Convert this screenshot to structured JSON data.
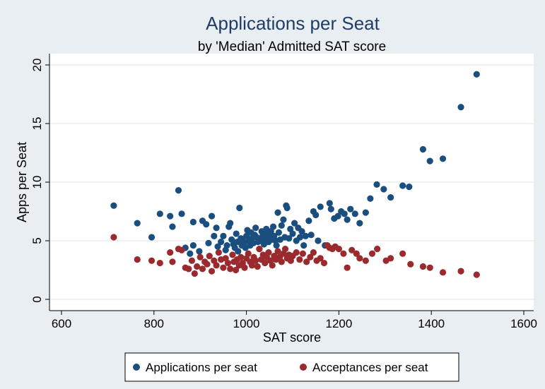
{
  "chart_data": {
    "type": "scatter",
    "title": "Applications per Seat",
    "subtitle": "by 'Median' Admitted SAT score",
    "xlabel": "SAT score",
    "ylabel": "Apps per Seat",
    "xlim": [
      600,
      1600
    ],
    "ylim": [
      0,
      20
    ],
    "xticks": [
      "600",
      "800",
      "1000",
      "1200",
      "1400",
      "1600"
    ],
    "yticks": [
      "0",
      "5",
      "10",
      "15",
      "20"
    ],
    "grid": true,
    "legend_placement": "bottom",
    "series": [
      {
        "name": "Applications per seat",
        "color": "#1a4e7f",
        "points": [
          [
            713,
            8.0
          ],
          [
            764,
            6.5
          ],
          [
            795,
            5.3
          ],
          [
            813,
            7.3
          ],
          [
            835,
            7.1
          ],
          [
            840,
            6.2
          ],
          [
            853,
            9.3
          ],
          [
            860,
            7.3
          ],
          [
            868,
            4.4
          ],
          [
            878,
            3.9
          ],
          [
            885,
            4.6
          ],
          [
            885,
            6.6
          ],
          [
            898,
            4.1
          ],
          [
            905,
            6.7
          ],
          [
            913,
            6.4
          ],
          [
            918,
            4.8
          ],
          [
            925,
            7.1
          ],
          [
            930,
            5.4
          ],
          [
            935,
            6.1
          ],
          [
            938,
            4.5
          ],
          [
            945,
            4.9
          ],
          [
            950,
            5.4
          ],
          [
            955,
            4.2
          ],
          [
            958,
            4.6
          ],
          [
            962,
            6.2
          ],
          [
            965,
            6.5
          ],
          [
            968,
            5.1
          ],
          [
            972,
            4.7
          ],
          [
            975,
            4.4
          ],
          [
            978,
            5.6
          ],
          [
            980,
            4.9
          ],
          [
            982,
            4.1
          ],
          [
            985,
            7.8
          ],
          [
            988,
            5.2
          ],
          [
            990,
            4.6
          ],
          [
            992,
            5.0
          ],
          [
            995,
            4.8
          ],
          [
            998,
            4.4
          ],
          [
            1000,
            5.4
          ],
          [
            1002,
            5.9
          ],
          [
            1005,
            5.0
          ],
          [
            1008,
            4.6
          ],
          [
            1010,
            5.7
          ],
          [
            1012,
            5.2
          ],
          [
            1015,
            4.8
          ],
          [
            1018,
            5.5
          ],
          [
            1020,
            6.1
          ],
          [
            1022,
            5.3
          ],
          [
            1025,
            4.9
          ],
          [
            1028,
            4.3
          ],
          [
            1030,
            5.0
          ],
          [
            1033,
            5.8
          ],
          [
            1035,
            5.4
          ],
          [
            1038,
            4.7
          ],
          [
            1040,
            5.2
          ],
          [
            1043,
            6.0
          ],
          [
            1045,
            5.6
          ],
          [
            1048,
            4.9
          ],
          [
            1050,
            5.4
          ],
          [
            1053,
            5.8
          ],
          [
            1055,
            5.1
          ],
          [
            1058,
            6.2
          ],
          [
            1060,
            5.4
          ],
          [
            1063,
            5.0
          ],
          [
            1065,
            4.6
          ],
          [
            1068,
            7.4
          ],
          [
            1070,
            5.7
          ],
          [
            1073,
            5.1
          ],
          [
            1076,
            6.3
          ],
          [
            1080,
            6.8
          ],
          [
            1083,
            5.3
          ],
          [
            1086,
            8.0
          ],
          [
            1088,
            7.8
          ],
          [
            1092,
            5.2
          ],
          [
            1095,
            6.0
          ],
          [
            1100,
            5.6
          ],
          [
            1104,
            6.5
          ],
          [
            1108,
            5.0
          ],
          [
            1112,
            6.1
          ],
          [
            1116,
            5.3
          ],
          [
            1120,
            5.8
          ],
          [
            1124,
            4.6
          ],
          [
            1128,
            5.4
          ],
          [
            1135,
            6.7
          ],
          [
            1140,
            5.5
          ],
          [
            1145,
            7.5
          ],
          [
            1150,
            7.2
          ],
          [
            1155,
            5.0
          ],
          [
            1160,
            7.9
          ],
          [
            1170,
            4.6
          ],
          [
            1180,
            8.2
          ],
          [
            1183,
            7.7
          ],
          [
            1190,
            6.9
          ],
          [
            1198,
            7.1
          ],
          [
            1205,
            7.5
          ],
          [
            1212,
            7.3
          ],
          [
            1218,
            6.8
          ],
          [
            1225,
            7.7
          ],
          [
            1235,
            7.3
          ],
          [
            1245,
            6.5
          ],
          [
            1258,
            7.4
          ],
          [
            1268,
            8.6
          ],
          [
            1282,
            9.8
          ],
          [
            1297,
            9.4
          ],
          [
            1312,
            8.7
          ],
          [
            1338,
            9.7
          ],
          [
            1352,
            9.6
          ],
          [
            1382,
            12.8
          ],
          [
            1397,
            11.8
          ],
          [
            1425,
            12.0
          ],
          [
            1464,
            16.4
          ],
          [
            1498,
            19.2
          ]
        ]
      },
      {
        "name": "Acceptances per seat",
        "color": "#9b2a2e",
        "points": [
          [
            713,
            5.3
          ],
          [
            764,
            3.4
          ],
          [
            795,
            3.3
          ],
          [
            813,
            3.1
          ],
          [
            835,
            4.0
          ],
          [
            840,
            3.2
          ],
          [
            853,
            4.3
          ],
          [
            860,
            4.2
          ],
          [
            868,
            2.7
          ],
          [
            875,
            2.6
          ],
          [
            882,
            3.3
          ],
          [
            888,
            2.2
          ],
          [
            893,
            2.8
          ],
          [
            900,
            3.6
          ],
          [
            905,
            2.6
          ],
          [
            910,
            3.2
          ],
          [
            915,
            3.0
          ],
          [
            920,
            3.7
          ],
          [
            925,
            2.4
          ],
          [
            930,
            3.3
          ],
          [
            935,
            2.9
          ],
          [
            940,
            4.0
          ],
          [
            945,
            3.4
          ],
          [
            950,
            2.7
          ],
          [
            955,
            3.5
          ],
          [
            960,
            3.1
          ],
          [
            965,
            2.6
          ],
          [
            970,
            3.8
          ],
          [
            973,
            3.2
          ],
          [
            977,
            2.5
          ],
          [
            980,
            3.4
          ],
          [
            984,
            2.9
          ],
          [
            988,
            3.6
          ],
          [
            992,
            3.1
          ],
          [
            996,
            2.7
          ],
          [
            1000,
            3.5
          ],
          [
            1004,
            3.9
          ],
          [
            1008,
            3.2
          ],
          [
            1012,
            2.9
          ],
          [
            1016,
            3.6
          ],
          [
            1020,
            3.3
          ],
          [
            1024,
            2.8
          ],
          [
            1028,
            4.3
          ],
          [
            1032,
            3.4
          ],
          [
            1036,
            3.8
          ],
          [
            1040,
            3.1
          ],
          [
            1044,
            3.6
          ],
          [
            1048,
            4.0
          ],
          [
            1052,
            3.3
          ],
          [
            1056,
            2.9
          ],
          [
            1060,
            3.7
          ],
          [
            1064,
            3.4
          ],
          [
            1068,
            4.1
          ],
          [
            1072,
            3.6
          ],
          [
            1076,
            3.2
          ],
          [
            1080,
            3.9
          ],
          [
            1084,
            4.3
          ],
          [
            1088,
            3.5
          ],
          [
            1092,
            3.8
          ],
          [
            1096,
            3.3
          ],
          [
            1100,
            3.7
          ],
          [
            1108,
            4.0
          ],
          [
            1115,
            3.4
          ],
          [
            1122,
            3.9
          ],
          [
            1130,
            3.2
          ],
          [
            1138,
            3.6
          ],
          [
            1145,
            4.0
          ],
          [
            1152,
            3.3
          ],
          [
            1160,
            3.5
          ],
          [
            1168,
            3.1
          ],
          [
            1175,
            4.6
          ],
          [
            1180,
            4.4
          ],
          [
            1186,
            4.3
          ],
          [
            1192,
            4.5
          ],
          [
            1200,
            4.3
          ],
          [
            1210,
            3.9
          ],
          [
            1218,
            2.7
          ],
          [
            1228,
            4.2
          ],
          [
            1238,
            3.9
          ],
          [
            1245,
            3.5
          ],
          [
            1258,
            3.3
          ],
          [
            1272,
            3.9
          ],
          [
            1283,
            4.3
          ],
          [
            1302,
            3.3
          ],
          [
            1312,
            3.5
          ],
          [
            1338,
            3.9
          ],
          [
            1355,
            3.0
          ],
          [
            1382,
            2.8
          ],
          [
            1397,
            2.7
          ],
          [
            1425,
            2.3
          ],
          [
            1464,
            2.4
          ],
          [
            1498,
            2.1
          ]
        ]
      }
    ]
  }
}
